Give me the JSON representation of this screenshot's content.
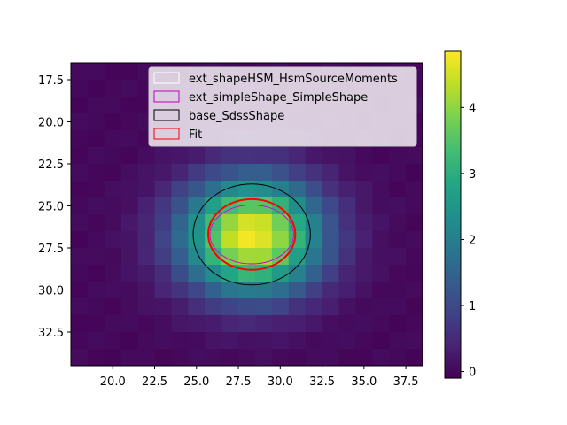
{
  "chart_data": {
    "type": "heatmap",
    "title": "",
    "xlabel": "",
    "ylabel": "",
    "xlim": [
      17.5,
      38.5
    ],
    "ylim": [
      34.5,
      16.5
    ],
    "x_ticks": [
      "20.0",
      "22.5",
      "25.0",
      "27.5",
      "30.0",
      "32.5",
      "35.0",
      "37.5"
    ],
    "y_ticks": [
      "17.5",
      "20.0",
      "22.5",
      "25.0",
      "27.5",
      "30.0",
      "32.5"
    ],
    "colormap": "viridis",
    "color_range": [
      -0.1,
      4.85
    ],
    "colorbar_ticks": [
      "0",
      "1",
      "2",
      "3",
      "4"
    ],
    "image_source_center": [
      28.3,
      26.8
    ],
    "image_source_sigma": [
      2.9,
      2.4
    ],
    "image_source_peak": 4.8,
    "legend_location": "upper right",
    "legend": [
      {
        "label": "ext_shapeHSM_HsmSourceMoments",
        "color": "#ffffff"
      },
      {
        "label": "ext_simpleShape_SimpleShape",
        "color": "#bf00bf"
      },
      {
        "label": "base_SdssShape",
        "color": "#000000"
      },
      {
        "label": "Fit",
        "color": "#ff0000"
      }
    ],
    "ellipses": [
      {
        "name": "ext_shapeHSM_HsmSourceMoments",
        "cx": 28.3,
        "cy": 26.7,
        "rx": 2.5,
        "ry": 1.75,
        "color": "#ffffff"
      },
      {
        "name": "ext_simpleShape_SimpleShape",
        "cx": 28.3,
        "cy": 26.7,
        "rx": 2.5,
        "ry": 1.75,
        "color": "#bf00bf"
      },
      {
        "name": "base_SdssShape",
        "cx": 28.3,
        "cy": 26.7,
        "rx": 3.5,
        "ry": 3.0,
        "color": "#000000"
      },
      {
        "name": "Fit",
        "cx": 28.3,
        "cy": 26.7,
        "rx": 2.6,
        "ry": 2.1,
        "color": "#ff0000"
      }
    ]
  }
}
